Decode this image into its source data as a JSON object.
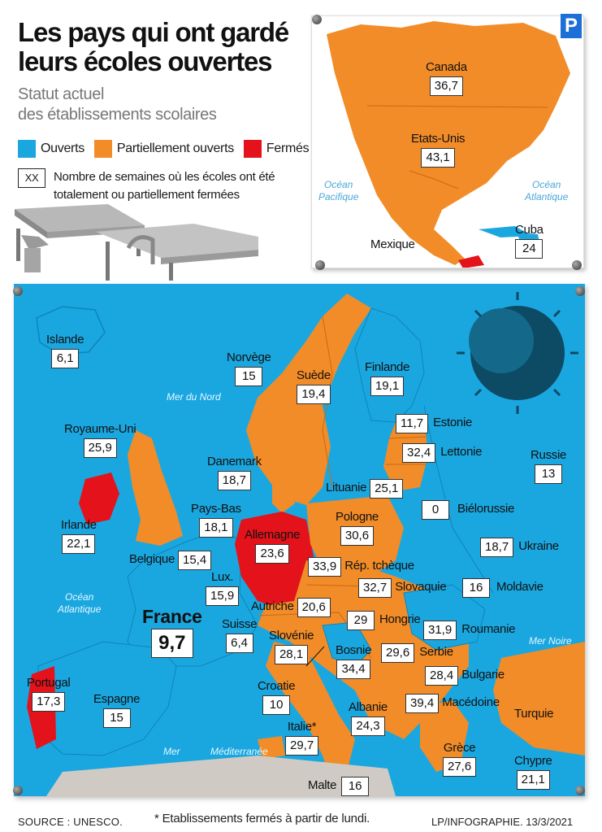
{
  "title": "Les pays qui ont gardé leurs écoles ouvertes",
  "subtitle_line1": "Statut actuel",
  "subtitle_line2": "des établissements scolaires",
  "legend": {
    "open": "Ouverts",
    "partial": "Partiellement ouverts",
    "closed": "Fermés",
    "xx_label": "XX",
    "xx_text": "Nombre de semaines où les écoles ont été totalement ou partiellement fermées"
  },
  "colors": {
    "open": "#1aa7e0",
    "partial": "#f28c28",
    "closed": "#e3121b",
    "sea": "#1aa7e0"
  },
  "logo_letter": "P",
  "americas": {
    "countries": [
      {
        "name": "Canada",
        "weeks": "36,7"
      },
      {
        "name": "Etats-Unis",
        "weeks": "43,1"
      },
      {
        "name": "Mexique",
        "weeks": ""
      },
      {
        "name": "Cuba",
        "weeks": "24"
      }
    ],
    "seas": [
      {
        "line1": "Océan",
        "line2": "Pacifique"
      },
      {
        "line1": "Océan",
        "line2": "Atlantique"
      }
    ]
  },
  "europe": {
    "countries": [
      {
        "name": "Islande",
        "weeks": "6,1"
      },
      {
        "name": "Norvège",
        "weeks": "15"
      },
      {
        "name": "Suède",
        "weeks": "19,4"
      },
      {
        "name": "Finlande",
        "weeks": "19,1"
      },
      {
        "name": "Estonie",
        "weeks": "11,7"
      },
      {
        "name": "Lettonie",
        "weeks": "32,4"
      },
      {
        "name": "Lituanie",
        "weeks": "25,1"
      },
      {
        "name": "Russie",
        "weeks": "13"
      },
      {
        "name": "Royaume-Uni",
        "weeks": "25,9"
      },
      {
        "name": "Danemark",
        "weeks": "18,7"
      },
      {
        "name": "Biélorussie",
        "weeks": "0"
      },
      {
        "name": "Irlande",
        "weeks": "22,1"
      },
      {
        "name": "Pays-Bas",
        "weeks": "18,1"
      },
      {
        "name": "Allemagne",
        "weeks": "23,6"
      },
      {
        "name": "Pologne",
        "weeks": "30,6"
      },
      {
        "name": "Ukraine",
        "weeks": "18,7"
      },
      {
        "name": "Belgique",
        "weeks": "15,4"
      },
      {
        "name": "Rép. tchèque",
        "weeks": "33,9"
      },
      {
        "name": "Lux.",
        "weeks": "15,9"
      },
      {
        "name": "Slovaquie",
        "weeks": "32,7"
      },
      {
        "name": "Moldavie",
        "weeks": "16"
      },
      {
        "name": "France",
        "weeks": "9,7"
      },
      {
        "name": "Autriche",
        "weeks": "20,6"
      },
      {
        "name": "Hongrie",
        "weeks": "29"
      },
      {
        "name": "Suisse",
        "weeks": "6,4"
      },
      {
        "name": "Slovénie",
        "weeks": "28,1"
      },
      {
        "name": "Roumanie",
        "weeks": "31,9"
      },
      {
        "name": "Bosnie",
        "weeks": "34,4"
      },
      {
        "name": "Serbie",
        "weeks": "29,6"
      },
      {
        "name": "Bulgarie",
        "weeks": "28,4"
      },
      {
        "name": "Croatie",
        "weeks": "10"
      },
      {
        "name": "Portugal",
        "weeks": "17,3"
      },
      {
        "name": "Espagne",
        "weeks": "15"
      },
      {
        "name": "Macédoine",
        "weeks": "39,4"
      },
      {
        "name": "Albanie",
        "weeks": "24,3"
      },
      {
        "name": "Turquie",
        "weeks": ""
      },
      {
        "name": "Italie*",
        "weeks": "29,7"
      },
      {
        "name": "Grèce",
        "weeks": "27,6"
      },
      {
        "name": "Chypre",
        "weeks": "21,1"
      },
      {
        "name": "Malte",
        "weeks": "16"
      }
    ],
    "seas": [
      {
        "line1": "Mer du Nord",
        "line2": ""
      },
      {
        "line1": "Océan",
        "line2": "Atlantique"
      },
      {
        "line1": "Mer Noire",
        "line2": ""
      },
      {
        "line1": "Mer",
        "line2": ""
      },
      {
        "line1": "Méditerranée",
        "line2": ""
      }
    ]
  },
  "footer": {
    "source": "SOURCE : UNESCO.",
    "note": "* Etablissements fermés à partir de lundi.",
    "credit": "LP/INFOGRAPHIE.  13/3/2021"
  }
}
